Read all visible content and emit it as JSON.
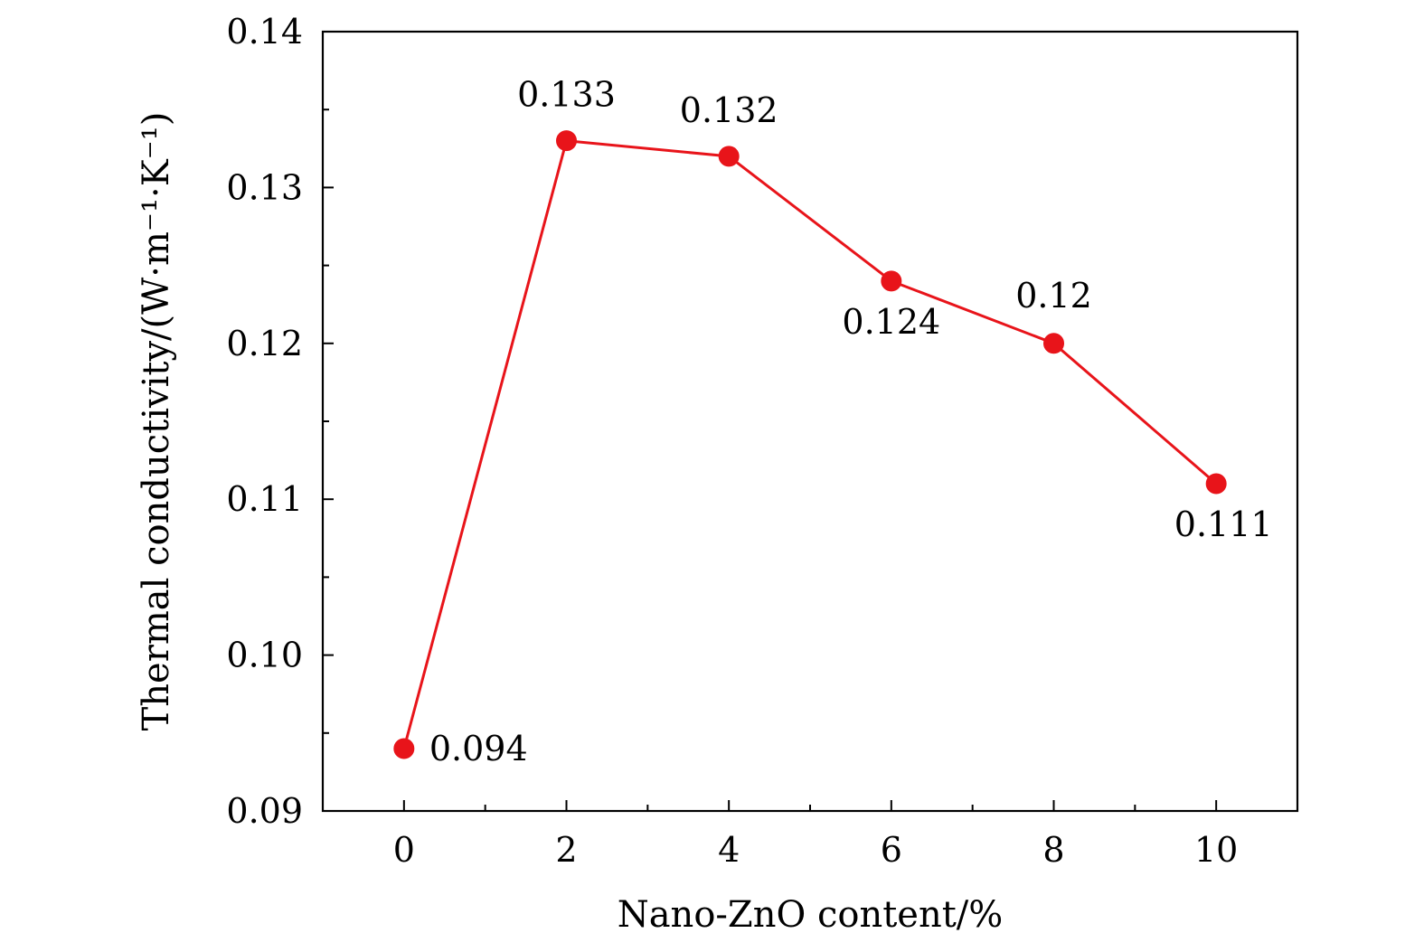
{
  "chart_data": {
    "type": "line",
    "title": "",
    "xlabel": "Nano-ZnO content/%",
    "ylabel": "Thermal conductivity/(W·m⁻¹·K⁻¹)",
    "xlim": [
      -1,
      11
    ],
    "ylim": [
      0.09,
      0.14
    ],
    "xticks": [
      0,
      2,
      4,
      6,
      8,
      10
    ],
    "xtick_labels": [
      "0",
      "2",
      "4",
      "6",
      "8",
      "10"
    ],
    "yticks": [
      0.09,
      0.1,
      0.11,
      0.12,
      0.13,
      0.14
    ],
    "ytick_labels": [
      "0.09",
      "0.10",
      "0.11",
      "0.12",
      "0.13",
      "0.14"
    ],
    "grid": false,
    "series": [
      {
        "color": "#e8141a",
        "marker": "circle",
        "x": [
          0,
          2,
          4,
          6,
          8,
          10
        ],
        "y": [
          0.094,
          0.133,
          0.132,
          0.124,
          0.12,
          0.111
        ],
        "labels": [
          "0.094",
          "0.133",
          "0.132",
          "0.124",
          "0.12",
          "0.111"
        ]
      }
    ]
  }
}
